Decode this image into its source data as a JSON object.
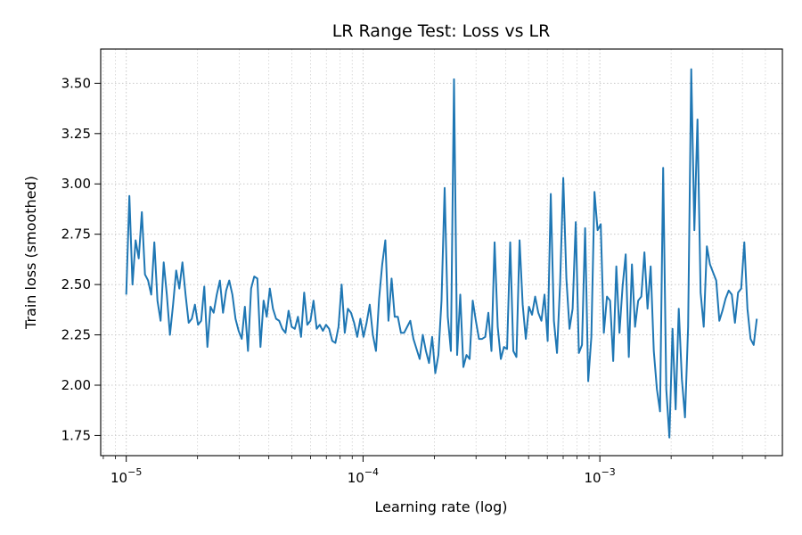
{
  "chart_data": {
    "type": "line",
    "title": "LR Range Test: Loss vs LR",
    "xlabel": "Learning rate (log)",
    "ylabel": "Train loss (smoothed)",
    "xscale": "log",
    "xlim": [
      7.8e-06,
      0.0059
    ],
    "ylim": [
      1.65,
      3.67
    ],
    "grid": true,
    "grid_style": "dotted",
    "line_color": "#1f77b4",
    "x_ticks": [
      {
        "value": 1e-05,
        "base": "10",
        "exp": "−5"
      },
      {
        "value": 0.0001,
        "base": "10",
        "exp": "−4"
      },
      {
        "value": 0.001,
        "base": "10",
        "exp": "−3"
      }
    ],
    "y_ticks": [
      "1.75",
      "2.00",
      "2.25",
      "2.50",
      "2.75",
      "3.00",
      "3.25",
      "3.50"
    ],
    "x_range": [
      1e-05,
      0.0046
    ],
    "y": [
      2.45,
      2.94,
      2.5,
      2.72,
      2.63,
      2.86,
      2.55,
      2.52,
      2.45,
      2.71,
      2.42,
      2.32,
      2.61,
      2.45,
      2.25,
      2.4,
      2.57,
      2.48,
      2.61,
      2.45,
      2.31,
      2.33,
      2.4,
      2.3,
      2.32,
      2.49,
      2.19,
      2.39,
      2.36,
      2.45,
      2.52,
      2.36,
      2.47,
      2.52,
      2.45,
      2.33,
      2.27,
      2.23,
      2.39,
      2.17,
      2.48,
      2.54,
      2.53,
      2.19,
      2.42,
      2.34,
      2.48,
      2.38,
      2.33,
      2.32,
      2.28,
      2.26,
      2.37,
      2.29,
      2.28,
      2.34,
      2.24,
      2.46,
      2.3,
      2.32,
      2.42,
      2.28,
      2.3,
      2.27,
      2.3,
      2.28,
      2.22,
      2.21,
      2.29,
      2.5,
      2.26,
      2.38,
      2.36,
      2.31,
      2.24,
      2.33,
      2.24,
      2.31,
      2.4,
      2.25,
      2.17,
      2.43,
      2.6,
      2.72,
      2.32,
      2.53,
      2.34,
      2.34,
      2.26,
      2.26,
      2.29,
      2.32,
      2.23,
      2.18,
      2.13,
      2.25,
      2.17,
      2.11,
      2.24,
      2.06,
      2.15,
      2.42,
      2.98,
      2.34,
      2.17,
      3.52,
      2.15,
      2.45,
      2.09,
      2.15,
      2.13,
      2.42,
      2.32,
      2.23,
      2.23,
      2.24,
      2.36,
      2.17,
      2.71,
      2.29,
      2.13,
      2.19,
      2.18,
      2.71,
      2.17,
      2.14,
      2.72,
      2.4,
      2.23,
      2.39,
      2.35,
      2.44,
      2.36,
      2.32,
      2.45,
      2.22,
      2.95,
      2.32,
      2.16,
      2.51,
      3.03,
      2.53,
      2.28,
      2.38,
      2.81,
      2.16,
      2.2,
      2.78,
      2.02,
      2.24,
      2.96,
      2.77,
      2.8,
      2.26,
      2.44,
      2.42,
      2.12,
      2.59,
      2.26,
      2.49,
      2.65,
      2.14,
      2.6,
      2.29,
      2.42,
      2.44,
      2.66,
      2.38,
      2.59,
      2.17,
      1.98,
      1.87,
      3.08,
      1.98,
      1.74,
      2.28,
      1.88,
      2.38,
      2.03,
      1.84,
      2.29,
      3.57,
      2.77,
      3.32,
      2.46,
      2.29,
      2.69,
      2.6,
      2.56,
      2.52,
      2.32,
      2.37,
      2.43,
      2.47,
      2.45,
      2.31,
      2.46,
      2.48,
      2.71,
      2.38,
      2.23,
      2.2,
      2.33
    ]
  }
}
